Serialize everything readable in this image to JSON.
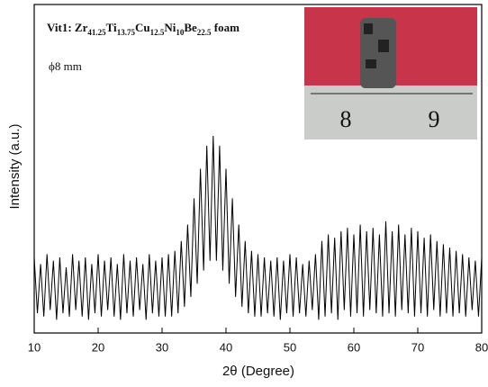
{
  "chart_data": {
    "type": "line",
    "xlabel": "2θ (Degree)",
    "ylabel": "Intensity (a.u.)",
    "formula": {
      "elements": [
        "Vit1: Zr",
        "Ti",
        "Cu",
        "Ni",
        "Be"
      ],
      "subscripts": [
        "41.25",
        "13.75",
        "12.5",
        "10",
        "22.5"
      ],
      "suffix": " foam"
    },
    "annotation": "ϕ8 mm",
    "inset_labels": [
      "8",
      "9"
    ],
    "color": "#000000",
    "xlim": [
      10,
      80
    ],
    "xticks": [
      10,
      20,
      30,
      40,
      50,
      60,
      70,
      80
    ],
    "ylim": [
      0,
      100
    ],
    "x": [
      10,
      10.5,
      11,
      11.5,
      12,
      12.5,
      13,
      13.5,
      14,
      14.5,
      15,
      15.5,
      16,
      16.5,
      17,
      17.5,
      18,
      18.5,
      19,
      19.5,
      20,
      20.5,
      21,
      21.5,
      22,
      22.5,
      23,
      23.5,
      24,
      24.5,
      25,
      25.5,
      26,
      26.5,
      27,
      27.5,
      28,
      28.5,
      29,
      29.5,
      30,
      30.5,
      31,
      31.5,
      32,
      32.5,
      33,
      33.5,
      34,
      34.5,
      35,
      35.5,
      36,
      36.5,
      37,
      37.5,
      38,
      38.5,
      39,
      39.5,
      40,
      40.5,
      41,
      41.5,
      42,
      42.5,
      43,
      43.5,
      44,
      44.5,
      45,
      45.5,
      46,
      46.5,
      47,
      47.5,
      48,
      48.5,
      49,
      49.5,
      50,
      50.5,
      51,
      51.5,
      52,
      52.5,
      53,
      53.5,
      54,
      54.5,
      55,
      55.5,
      56,
      56.5,
      57,
      57.5,
      58,
      58.5,
      59,
      59.5,
      60,
      60.5,
      61,
      61.5,
      62,
      62.5,
      63,
      63.5,
      64,
      64.5,
      65,
      65.5,
      66,
      66.5,
      67,
      67.5,
      68,
      68.5,
      69,
      69.5,
      70,
      70.5,
      71,
      71.5,
      72,
      72.5,
      73,
      73.5,
      74,
      74.5,
      75,
      75.5,
      76,
      76.5,
      77,
      77.5,
      78,
      78.5,
      79,
      79.5,
      80
    ],
    "values": [
      23,
      6,
      21,
      5,
      24,
      7,
      22,
      4,
      23,
      6,
      20,
      5,
      24,
      7,
      22,
      5,
      23,
      4,
      21,
      6,
      24,
      5,
      22,
      7,
      23,
      5,
      21,
      4,
      24,
      6,
      22,
      5,
      23,
      7,
      21,
      4,
      24,
      6,
      22,
      5,
      23,
      5,
      24,
      5,
      25,
      6,
      28,
      8,
      33,
      11,
      41,
      15,
      50,
      19,
      57,
      22,
      60,
      22,
      57,
      19,
      50,
      15,
      41,
      11,
      33,
      8,
      28,
      6,
      25,
      5,
      24,
      5,
      23,
      6,
      22,
      5,
      23,
      4,
      22,
      6,
      24,
      5,
      23,
      6,
      21,
      5,
      22,
      7,
      24,
      4,
      28,
      5,
      30,
      6,
      29,
      4,
      31,
      7,
      32,
      5,
      30,
      6,
      33,
      5,
      31,
      7,
      32,
      6,
      30,
      5,
      34,
      6,
      31,
      5,
      33,
      7,
      30,
      6,
      32,
      5,
      31,
      6,
      29,
      5,
      30,
      7,
      28,
      5,
      27,
      6,
      26,
      5,
      25,
      6,
      24,
      5,
      23,
      7,
      22,
      5,
      23
    ]
  }
}
